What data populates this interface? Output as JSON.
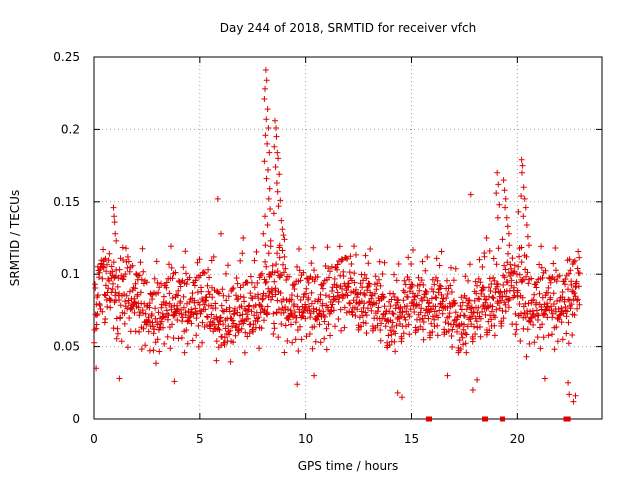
{
  "chart_data": {
    "type": "scatter",
    "title": "Day 244 of 2018, SRMTID for receiver vfch",
    "xlabel": "GPS time / hours",
    "ylabel": "SRMTID / TECUs",
    "xlim": [
      0,
      24
    ],
    "ylim": [
      0,
      0.25
    ],
    "xticks": [
      0,
      5,
      10,
      15,
      20
    ],
    "xtick_labels": [
      "0",
      "5",
      "10",
      "15",
      "20"
    ],
    "yticks": [
      0,
      0.05,
      0.1,
      0.15,
      0.2,
      0.25
    ],
    "ytick_labels": [
      "0",
      "0.05",
      "0.1",
      "0.15",
      "0.2",
      "0.25"
    ],
    "grid": true,
    "marker": "+",
    "color": "#e00000",
    "x_data_range": [
      0,
      22.95
    ],
    "typical_band": [
      0.03,
      0.12
    ],
    "typical_mean": 0.075,
    "series": [
      {
        "name": "SRMTID",
        "points": [
          [
            8.12,
            0.241
          ],
          [
            8.16,
            0.234
          ],
          [
            8.08,
            0.228
          ],
          [
            8.05,
            0.221
          ],
          [
            8.2,
            0.214
          ],
          [
            8.14,
            0.207
          ],
          [
            8.24,
            0.201
          ],
          [
            8.1,
            0.196
          ],
          [
            8.18,
            0.19
          ],
          [
            8.28,
            0.184
          ],
          [
            8.05,
            0.178
          ],
          [
            8.22,
            0.172
          ],
          [
            8.15,
            0.166
          ],
          [
            8.3,
            0.159
          ],
          [
            8.26,
            0.152
          ],
          [
            8.32,
            0.145
          ],
          [
            8.08,
            0.14
          ],
          [
            8.2,
            0.134
          ],
          [
            8.0,
            0.128
          ],
          [
            8.35,
            0.123
          ],
          [
            8.55,
            0.206
          ],
          [
            8.6,
            0.201
          ],
          [
            8.62,
            0.195
          ],
          [
            8.52,
            0.188
          ],
          [
            8.66,
            0.184
          ],
          [
            8.7,
            0.18
          ],
          [
            8.58,
            0.174
          ],
          [
            8.75,
            0.169
          ],
          [
            8.64,
            0.163
          ],
          [
            8.68,
            0.157
          ],
          [
            8.8,
            0.151
          ],
          [
            8.72,
            0.147
          ],
          [
            8.5,
            0.142
          ],
          [
            8.85,
            0.137
          ],
          [
            8.9,
            0.131
          ],
          [
            8.95,
            0.127
          ],
          [
            9.0,
            0.124
          ],
          [
            8.78,
            0.12
          ],
          [
            0.92,
            0.146
          ],
          [
            0.95,
            0.14
          ],
          [
            0.98,
            0.136
          ],
          [
            1.0,
            0.128
          ],
          [
            1.05,
            0.123
          ],
          [
            5.85,
            0.152
          ],
          [
            6.0,
            0.128
          ],
          [
            7.05,
            0.125
          ],
          [
            8.1,
            0.12
          ],
          [
            17.8,
            0.155
          ],
          [
            18.55,
            0.125
          ],
          [
            18.7,
            0.116
          ],
          [
            18.45,
            0.112
          ],
          [
            19.05,
            0.17
          ],
          [
            19.1,
            0.162
          ],
          [
            19.0,
            0.156
          ],
          [
            19.15,
            0.148
          ],
          [
            19.08,
            0.139
          ],
          [
            19.35,
            0.165
          ],
          [
            19.4,
            0.158
          ],
          [
            19.45,
            0.152
          ],
          [
            19.42,
            0.146
          ],
          [
            19.5,
            0.139
          ],
          [
            19.55,
            0.133
          ],
          [
            19.6,
            0.128
          ],
          [
            19.3,
            0.124
          ],
          [
            19.62,
            0.12
          ],
          [
            20.2,
            0.179
          ],
          [
            20.25,
            0.175
          ],
          [
            20.22,
            0.17
          ],
          [
            20.3,
            0.16
          ],
          [
            20.18,
            0.154
          ],
          [
            20.35,
            0.152
          ],
          [
            20.4,
            0.146
          ],
          [
            20.28,
            0.14
          ],
          [
            20.45,
            0.134
          ],
          [
            20.5,
            0.126
          ],
          [
            20.05,
            0.143
          ],
          [
            20.55,
            0.12
          ],
          [
            20.1,
            0.118
          ],
          [
            14.35,
            0.018
          ],
          [
            14.55,
            0.015
          ],
          [
            17.9,
            0.02
          ],
          [
            18.1,
            0.027
          ],
          [
            22.45,
            0.017
          ],
          [
            22.65,
            0.012
          ],
          [
            22.75,
            0.016
          ],
          [
            22.4,
            0.025
          ],
          [
            1.2,
            0.028
          ],
          [
            3.8,
            0.026
          ],
          [
            9.6,
            0.024
          ],
          [
            10.4,
            0.03
          ],
          [
            16.7,
            0.03
          ],
          [
            21.3,
            0.028
          ],
          [
            0.1,
            0.035
          ]
        ],
        "bottom_markers": [
          [
            15.8,
            0.0
          ],
          [
            15.85,
            0.0
          ],
          [
            18.45,
            0.0
          ],
          [
            18.5,
            0.0
          ],
          [
            19.3,
            0.0
          ],
          [
            22.3,
            0.0
          ],
          [
            22.35,
            0.0
          ],
          [
            22.4,
            0.0
          ]
        ]
      }
    ]
  }
}
